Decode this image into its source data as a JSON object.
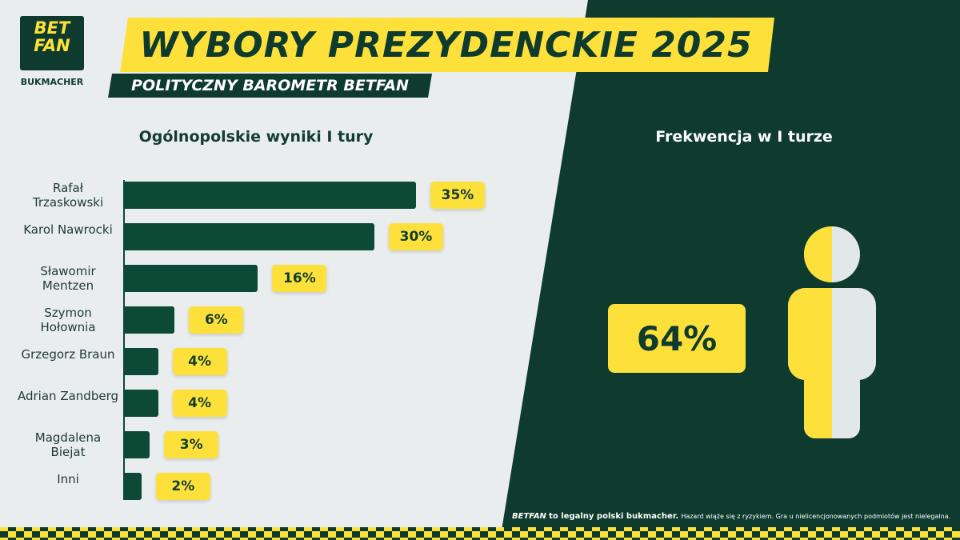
{
  "logo": {
    "line1": "BET",
    "line2": "FAN",
    "tagline": "BUKMACHER"
  },
  "header": {
    "title": "WYBORY PREZYDENCKIE 2025",
    "subtitle": "POLITYCZNY BAROMETR BETFAN"
  },
  "chart_data": [
    {
      "type": "bar",
      "orientation": "horizontal",
      "title": "Ogólnopolskie wyniki I tury",
      "categories": [
        "Rafał Trzaskowski",
        "Karol Nawrocki",
        "Sławomir Mentzen",
        "Szymon Hołownia",
        "Grzegorz Braun",
        "Adrian Zandberg",
        "Magdalena Biejat",
        "Inni"
      ],
      "values": [
        35,
        30,
        16,
        6,
        4,
        4,
        3,
        2
      ],
      "value_labels": [
        "35%",
        "30%",
        "16%",
        "6%",
        "4%",
        "4%",
        "3%",
        "2%"
      ],
      "color": "#0d4a36",
      "label_color": "#fde13a"
    },
    {
      "type": "stat",
      "title": "Frekwencja w I turze",
      "value": 64,
      "value_label": "64%",
      "color": "#fde13a"
    }
  ],
  "footer": {
    "brand": "BETFAN",
    "text": "to legalny polski bukmacher.",
    "disclaimer": "Hazard wiąże się z ryzykiem. Gra u nielicencjonowanych podmiotów jest nielegalna."
  }
}
